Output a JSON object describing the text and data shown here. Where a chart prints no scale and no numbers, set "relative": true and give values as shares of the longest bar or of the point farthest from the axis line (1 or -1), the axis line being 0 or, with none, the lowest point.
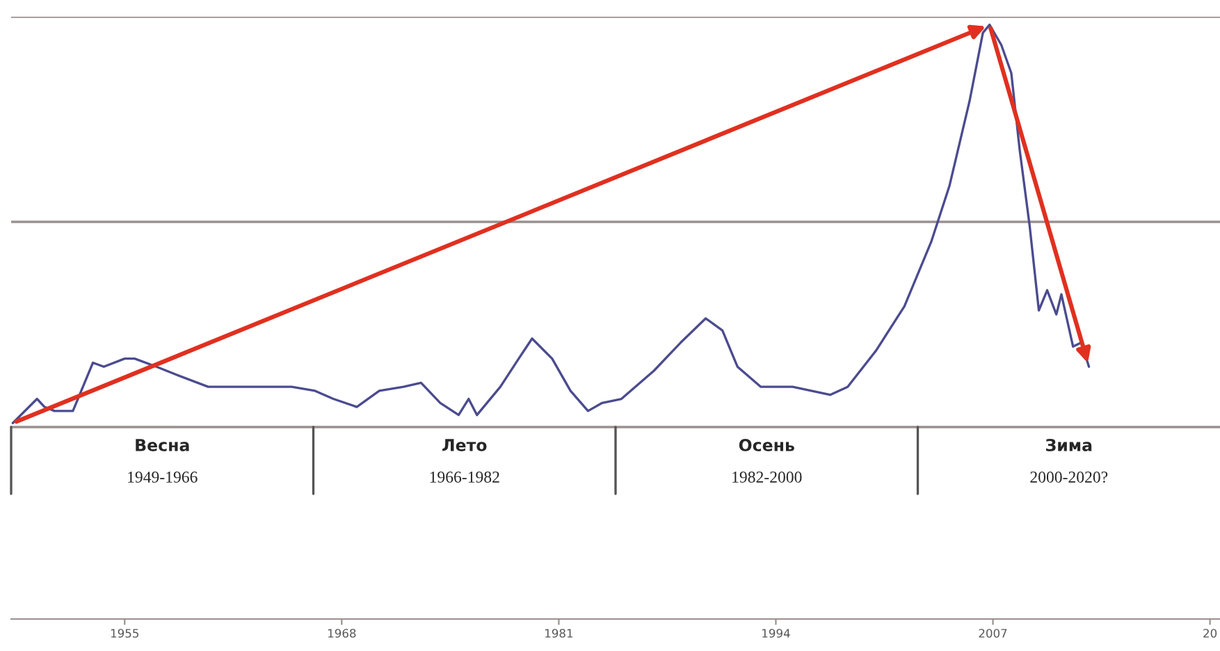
{
  "chart_data": {
    "type": "line",
    "relative": true,
    "legend": false,
    "xlim": [
      1948.2,
      2020.6
    ],
    "xticks": [
      1955,
      1968,
      1981,
      1994,
      2007,
      {
        "value": 2020,
        "label": "20"
      }
    ],
    "ref_lines": [
      {
        "axis": "y",
        "value": 0.51,
        "color": "#9a9090"
      },
      {
        "axis": "y",
        "value": 1.02,
        "color": "#9a9090"
      }
    ],
    "series": [
      {
        "color": "#4b4b8f",
        "x": [
          1948.3,
          1949.75,
          1950.2,
          1950.8,
          1951.9,
          1953.1,
          1953.75,
          1955.0,
          1955.6,
          1956.9,
          1958.1,
          1960.0,
          1961.4,
          1963.1,
          1965.0,
          1966.4,
          1967.5,
          1968.9,
          1970.25,
          1971.7,
          1972.75,
          1973.9,
          1975.0,
          1975.6,
          1976.1,
          1977.5,
          1978.6,
          1979.4,
          1980.6,
          1981.7,
          1982.75,
          1983.6,
          1984.75,
          1986.7,
          1988.3,
          1989.8,
          1990.8,
          1991.7,
          1993.1,
          1995.0,
          1997.25,
          1998.3,
          2000.0,
          2001.7,
          2003.3,
          2004.4,
          2005.6,
          2006.4,
          2006.8,
          2007.5,
          2008.1,
          2008.6,
          2009.2,
          2009.75,
          2010.25,
          2010.8,
          2011.1,
          2011.8,
          2012.3,
          2012.75
        ],
        "values": [
          0.01,
          0.07,
          0.05,
          0.04,
          0.04,
          0.16,
          0.15,
          0.17,
          0.17,
          0.15,
          0.13,
          0.1,
          0.1,
          0.1,
          0.1,
          0.09,
          0.07,
          0.05,
          0.09,
          0.1,
          0.11,
          0.06,
          0.03,
          0.07,
          0.03,
          0.1,
          0.17,
          0.22,
          0.17,
          0.09,
          0.04,
          0.06,
          0.07,
          0.14,
          0.21,
          0.27,
          0.24,
          0.15,
          0.1,
          0.1,
          0.08,
          0.1,
          0.19,
          0.3,
          0.46,
          0.6,
          0.81,
          0.98,
          1.0,
          0.95,
          0.88,
          0.69,
          0.5,
          0.29,
          0.34,
          0.28,
          0.33,
          0.2,
          0.21,
          0.15
        ]
      }
    ],
    "annotations": [
      "Весна",
      "1949-1966",
      "Лето",
      "1966-1982",
      "Осень",
      "1982-2000",
      "Зима",
      "2000-2020?"
    ]
  }
}
